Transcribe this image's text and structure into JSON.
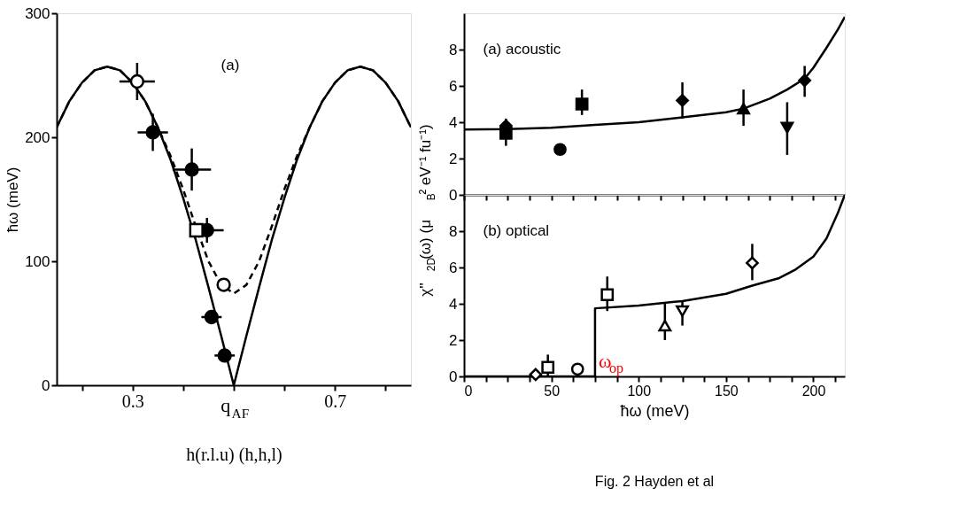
{
  "chart_data": [
    {
      "type": "scatter",
      "xlabel": "h(r.l.u) (h,h,l)",
      "ylabel": "ħω (meV)",
      "xlim": [
        0.15,
        0.85
      ],
      "xticks": [
        {
          "value": 0.2,
          "label": null
        },
        0.3,
        {
          "value": 0.4,
          "label": null
        },
        {
          "value": 0.5,
          "label": "q$_{AF}$"
        },
        {
          "value": 0.6,
          "label": null
        },
        0.7,
        {
          "value": 0.8,
          "label": null
        }
      ],
      "ylim": [
        0,
        300
      ],
      "yticks": [
        0,
        100,
        200,
        300
      ],
      "grid": false,
      "annotations": [
        "(a)"
      ],
      "series": [
        {
          "type": "line",
          "line_style": "solid",
          "color": "#000000",
          "x": [
            0.15,
            0.175,
            0.2,
            0.225,
            0.25,
            0.275,
            0.3,
            0.325,
            0.35,
            0.375,
            0.4,
            0.425,
            0.45,
            0.475,
            0.5,
            0.525,
            0.55,
            0.575,
            0.6,
            0.625,
            0.65,
            0.675,
            0.7,
            0.725,
            0.75,
            0.775,
            0.8,
            0.825,
            0.85
          ],
          "values": [
            208,
            229,
            244,
            254,
            257,
            254,
            244,
            229,
            208,
            182,
            151,
            117,
            79,
            40,
            0,
            40,
            79,
            117,
            151,
            182,
            208,
            229,
            244,
            254,
            257,
            254,
            244,
            229,
            208
          ]
        },
        {
          "type": "line",
          "line_style": "dashed",
          "color": "#000000",
          "x": [
            0.15,
            0.175,
            0.2,
            0.225,
            0.25,
            0.275,
            0.3,
            0.325,
            0.35,
            0.375,
            0.4,
            0.425,
            0.45,
            0.475,
            0.5,
            0.525,
            0.55,
            0.575,
            0.6,
            0.625,
            0.65,
            0.675,
            0.7,
            0.725,
            0.75,
            0.775,
            0.8,
            0.825,
            0.85
          ],
          "values": [
            208,
            229,
            244,
            254,
            257,
            254,
            244,
            229,
            208,
            185,
            158,
            128,
            100,
            81,
            74,
            81,
            100,
            128,
            158,
            185,
            208,
            229,
            244,
            254,
            257,
            254,
            244,
            229,
            208
          ]
        },
        {
          "marker": "circle",
          "color": "#000000",
          "x": [
            0.34,
            0.417,
            0.447,
            0.456,
            0.482
          ],
          "values": [
            204,
            174,
            125,
            55,
            24
          ],
          "errors": [
            15,
            17,
            10,
            null,
            null
          ],
          "xerrors": [
            0.03,
            0.038,
            0.033,
            0.02,
            0.02
          ]
        },
        {
          "marker": "circle",
          "color": "#ffffff",
          "x": [
            0.309,
            0.48
          ],
          "values": [
            245,
            81
          ],
          "errors": [
            15,
            null
          ],
          "xerrors": [
            0.035,
            null
          ]
        },
        {
          "marker": "square",
          "color": "#ffffff",
          "x": [
            0.426
          ],
          "values": [
            125
          ]
        }
      ]
    },
    {
      "type": "scatter",
      "ylabel": "χ''$_{2D}$(ω)  (μ$_{B}$² eV⁻¹ fu⁻¹)",
      "xlim": [
        0,
        218
      ],
      "xticks": [
        0,
        {
          "value": 12.5,
          "label": null
        },
        {
          "value": 25,
          "label": null
        },
        {
          "value": 37.5,
          "label": null
        },
        50,
        {
          "value": 62.5,
          "label": null
        },
        {
          "value": 75,
          "label": null
        },
        {
          "value": 87.5,
          "label": null
        },
        100,
        {
          "value": 112.5,
          "label": null
        },
        {
          "value": 125,
          "label": null
        },
        {
          "value": 137.5,
          "label": null
        },
        150,
        {
          "value": 162.5,
          "label": null
        },
        {
          "value": 175,
          "label": null
        },
        {
          "value": 187.5,
          "label": null
        },
        200,
        {
          "value": 212.5,
          "label": null
        }
      ],
      "ylim": [
        0,
        10
      ],
      "yticks": [
        0,
        2,
        4,
        6,
        8
      ],
      "tick_labels": "y",
      "grid": false,
      "annotations": [
        "(a)  acoustic"
      ],
      "series": [
        {
          "type": "line",
          "line_style": "solid",
          "color": "#000000",
          "x": [
            0,
            25,
            50,
            75,
            100,
            125,
            150,
            160,
            175,
            185,
            195,
            200,
            207.5,
            214,
            218
          ],
          "values": [
            3.6,
            3.62,
            3.7,
            3.85,
            4.0,
            4.27,
            4.55,
            4.75,
            5.3,
            5.8,
            6.4,
            7.0,
            8.1,
            9.1,
            9.8
          ]
        },
        {
          "marker": "square",
          "color": "#000000",
          "x": [
            24,
            67.5
          ],
          "values": [
            3.4,
            5.0
          ],
          "errors": [
            [
              2.7,
              4.2
            ],
            [
              4.4,
              5.8
            ]
          ]
        },
        {
          "marker": "diamond",
          "color": "#000000",
          "x": [
            24,
            125,
            195
          ],
          "values": [
            3.8,
            5.2,
            6.3
          ],
          "errors": [
            null,
            [
              4.2,
              6.2
            ],
            [
              5.4,
              7.1
            ]
          ]
        },
        {
          "marker": "circle",
          "color": "#000000",
          "x": [
            55
          ],
          "values": [
            2.5
          ]
        },
        {
          "marker": "triangle-up",
          "color": "#000000",
          "x": [
            160
          ],
          "values": [
            4.75
          ],
          "errors": [
            [
              3.8,
              5.8
            ]
          ]
        },
        {
          "marker": "triangle-down",
          "color": "#000000",
          "x": [
            185
          ],
          "values": [
            3.7
          ],
          "errors": [
            [
              2.2,
              5.1
            ]
          ]
        }
      ]
    },
    {
      "type": "scatter",
      "xlabel": "ħω (meV)",
      "xlim": [
        0,
        218
      ],
      "xticks": [
        0,
        {
          "value": 12.5,
          "label": null
        },
        {
          "value": 25,
          "label": null
        },
        {
          "value": 37.5,
          "label": null
        },
        50,
        {
          "value": 62.5,
          "label": null
        },
        {
          "value": 75,
          "label": null
        },
        {
          "value": 87.5,
          "label": null
        },
        100,
        {
          "value": 112.5,
          "label": null
        },
        {
          "value": 125,
          "label": null
        },
        {
          "value": 137.5,
          "label": null
        },
        150,
        {
          "value": 162.5,
          "label": null
        },
        {
          "value": 175,
          "label": null
        },
        {
          "value": 187.5,
          "label": null
        },
        200,
        {
          "value": 212.5,
          "label": null
        }
      ],
      "ylim": [
        0,
        10
      ],
      "yticks": [
        0,
        2,
        4,
        6,
        8
      ],
      "grid": false,
      "annotations": [
        "(b)  optical",
        {
          "text": "ω$_{op}$",
          "x": 75,
          "y": 0
        },
        "Fig. 2    Hayden et al"
      ],
      "series": [
        {
          "type": "line",
          "line_style": "solid",
          "color": "#000000",
          "x": [
            0,
            75,
            75,
            100,
            125,
            150,
            165,
            180,
            190,
            200,
            207.5,
            214,
            218
          ],
          "values": [
            0,
            0,
            3.75,
            3.9,
            4.15,
            4.55,
            5.0,
            5.4,
            5.9,
            6.6,
            7.6,
            9.0,
            10
          ]
        },
        {
          "marker": "square",
          "color": "#ffffff",
          "x": [
            48,
            82
          ],
          "values": [
            0.5,
            4.5
          ],
          "errors": [
            [
              0,
              1.2
            ],
            [
              3.6,
              5.5
            ]
          ]
        },
        {
          "marker": "circle",
          "color": "#ffffff",
          "x": [
            65
          ],
          "values": [
            0.4
          ]
        },
        {
          "marker": "diamond",
          "color": "#ffffff",
          "x": [
            41,
            165
          ],
          "values": [
            0.1,
            6.25
          ],
          "errors": [
            null,
            [
              5.3,
              7.3
            ]
          ]
        },
        {
          "marker": "triangle-up",
          "color": "#ffffff",
          "x": [
            115
          ],
          "values": [
            2.8
          ],
          "errors": [
            [
              2.0,
              4.0
            ]
          ]
        },
        {
          "marker": "triangle-down",
          "color": "#ffffff",
          "x": [
            125
          ],
          "values": [
            3.6
          ],
          "errors": [
            [
              2.8,
              4.1
            ]
          ]
        }
      ]
    }
  ]
}
